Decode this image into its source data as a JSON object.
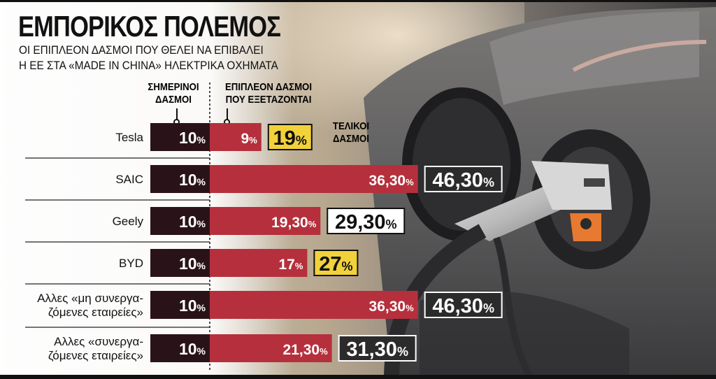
{
  "header": {
    "title": "ΕΜΠΟΡΙΚΟΣ ΠΟΛΕΜΟΣ",
    "subtitle_line1": "ΟΙ ΕΠΙΠΛΕΟΝ ΔΑΣΜΟΙ ΠΟΥ ΘΕΛΕΙ ΝΑ ΕΠΙΒΑΛΕΙ",
    "subtitle_line2": "Η ΕΕ ΣΤΑ «MADE IN CHINA» ΗΛΕΚΤΡΙΚΑ ΟΧΗΜΑΤΑ"
  },
  "columns": {
    "current_line1": "ΣΗΜΕΡΙΝΟΙ",
    "current_line2": "ΔΑΣΜΟΙ",
    "extra_line1": "ΕΠΙΠΛΕΟΝ ΔΑΣΜΟΙ",
    "extra_line2": "ΠΟΥ ΕΞΕΤΑΖΟΝΤΑΙ",
    "final_line1": "ΤΕΛΙΚΟΙ",
    "final_line2": "ΔΑΣΜΟΙ"
  },
  "colors": {
    "current_bar": "#2a1318",
    "extra_bar": "#b5303c",
    "final_box_highlight": "#f2d23a",
    "final_box_plain": "#ffffff",
    "final_box_dark": "#2b2b2b"
  },
  "chart_data": {
    "type": "bar",
    "stacked": true,
    "orientation": "horizontal",
    "categories": [
      [
        "Tesla"
      ],
      [
        "SAIC"
      ],
      [
        "Geely"
      ],
      [
        "BYD"
      ],
      [
        "Αλλες «μη συνεργα-",
        "ζόμενες εταιρείες»"
      ],
      [
        "Αλλες «συνεργα-",
        "ζόμενες εταιρείες»"
      ]
    ],
    "series": [
      {
        "values": [
          10,
          10,
          10,
          10,
          10,
          10
        ],
        "labels": [
          "10",
          "10",
          "10",
          "10",
          "10",
          "10"
        ]
      },
      {
        "values": [
          9,
          36.3,
          19.3,
          17,
          36.3,
          21.3
        ],
        "labels": [
          "9",
          "36,30",
          "19,30",
          "17",
          "36,30",
          "21,30"
        ]
      }
    ],
    "totals": [
      19,
      46.3,
      29.3,
      27,
      46.3,
      31.3
    ],
    "total_labels": [
      "19",
      "46,30",
      "29,30",
      "27",
      "46,30",
      "31,30"
    ],
    "total_box_style": [
      "highlight",
      "dark",
      "plain",
      "highlight",
      "dark",
      "dark"
    ],
    "unit": "%"
  }
}
